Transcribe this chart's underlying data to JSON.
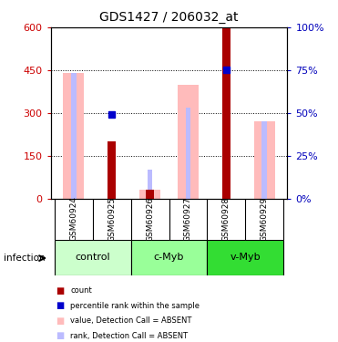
{
  "title": "GDS1427 / 206032_at",
  "samples": [
    "GSM60924",
    "GSM60925",
    "GSM60926",
    "GSM60927",
    "GSM60928",
    "GSM60929"
  ],
  "ylim_left": [
    0,
    600
  ],
  "ylim_right": [
    0,
    100
  ],
  "yticks_left": [
    0,
    150,
    300,
    450,
    600
  ],
  "yticks_right": [
    0,
    25,
    50,
    75,
    100
  ],
  "count_values": [
    0,
    200,
    30,
    0,
    600,
    0
  ],
  "count_color": "#aa0000",
  "rank_pct_values": [
    0,
    49,
    0,
    0,
    75,
    0
  ],
  "rank_pct_color": "#0000cc",
  "value_absent": [
    440,
    0,
    30,
    400,
    0,
    270
  ],
  "value_absent_color": "#ffbbbb",
  "rank_absent_pct": [
    440,
    0,
    100,
    320,
    0,
    270
  ],
  "rank_absent_color": "#bbbbff",
  "bg_color": "#ffffff",
  "label_color_left": "#cc0000",
  "label_color_right": "#0000bb",
  "sample_row_color": "#cccccc",
  "group_boundaries": [
    [
      0,
      1,
      "control",
      "#ccffcc"
    ],
    [
      2,
      3,
      "c-Myb",
      "#99ff99"
    ],
    [
      4,
      5,
      "v-Myb",
      "#33dd33"
    ]
  ],
  "infection_label": "infection",
  "legend_items": [
    [
      "#aa0000",
      "count"
    ],
    [
      "#0000cc",
      "percentile rank within the sample"
    ],
    [
      "#ffbbbb",
      "value, Detection Call = ABSENT"
    ],
    [
      "#bbbbff",
      "rank, Detection Call = ABSENT"
    ]
  ]
}
